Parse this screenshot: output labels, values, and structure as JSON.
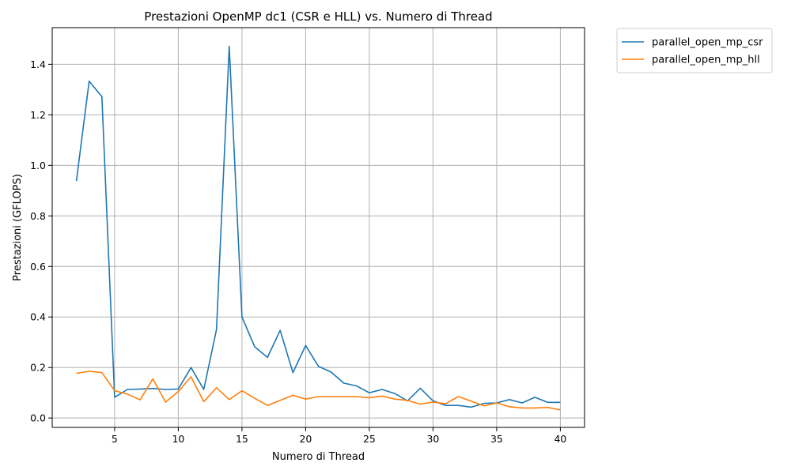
{
  "chart_data": {
    "type": "line",
    "title": "Prestazioni OpenMP dc1 (CSR e HLL) vs. Numero di Thread",
    "xlabel": "Numero di Thread",
    "ylabel": "Prestazioni (GFLOPS)",
    "xlim": [
      0.1,
      41.9
    ],
    "ylim": [
      -0.037,
      1.545
    ],
    "xticks": [
      5,
      10,
      15,
      20,
      25,
      30,
      35,
      40
    ],
    "xtick_labels": [
      "5",
      "10",
      "15",
      "20",
      "25",
      "30",
      "35",
      "40"
    ],
    "yticks": [
      0.0,
      0.2,
      0.4,
      0.6,
      0.8,
      1.0,
      1.2,
      1.4
    ],
    "ytick_labels": [
      "0.0",
      "0.2",
      "0.4",
      "0.6",
      "0.8",
      "1.0",
      "1.2",
      "1.4"
    ],
    "grid": true,
    "legend_position": "outside-top-right",
    "x": [
      2,
      3,
      4,
      5,
      6,
      7,
      8,
      9,
      10,
      11,
      12,
      13,
      14,
      15,
      16,
      17,
      18,
      19,
      20,
      21,
      22,
      23,
      24,
      25,
      26,
      27,
      28,
      29,
      30,
      31,
      32,
      33,
      34,
      35,
      36,
      37,
      38,
      39,
      40
    ],
    "series": [
      {
        "name": "parallel_open_mp_csr",
        "color": "#1f77b4",
        "values": [
          0.938,
          1.333,
          1.272,
          0.082,
          0.113,
          0.115,
          0.117,
          0.113,
          0.115,
          0.2,
          0.113,
          0.35,
          1.471,
          0.4,
          0.282,
          0.24,
          0.347,
          0.18,
          0.287,
          0.205,
          0.182,
          0.138,
          0.127,
          0.1,
          0.113,
          0.097,
          0.068,
          0.118,
          0.068,
          0.05,
          0.05,
          0.043,
          0.058,
          0.06,
          0.073,
          0.06,
          0.082,
          0.062,
          0.062
        ]
      },
      {
        "name": "parallel_open_mp_hll",
        "color": "#ff7f0e",
        "values": [
          0.177,
          0.185,
          0.18,
          0.108,
          0.095,
          0.072,
          0.155,
          0.063,
          0.105,
          0.163,
          0.065,
          0.12,
          0.073,
          0.108,
          0.078,
          0.05,
          0.07,
          0.09,
          0.075,
          0.085,
          0.085,
          0.085,
          0.085,
          0.08,
          0.087,
          0.075,
          0.07,
          0.055,
          0.063,
          0.057,
          0.085,
          0.067,
          0.048,
          0.06,
          0.045,
          0.04,
          0.04,
          0.042,
          0.032
        ]
      }
    ]
  }
}
